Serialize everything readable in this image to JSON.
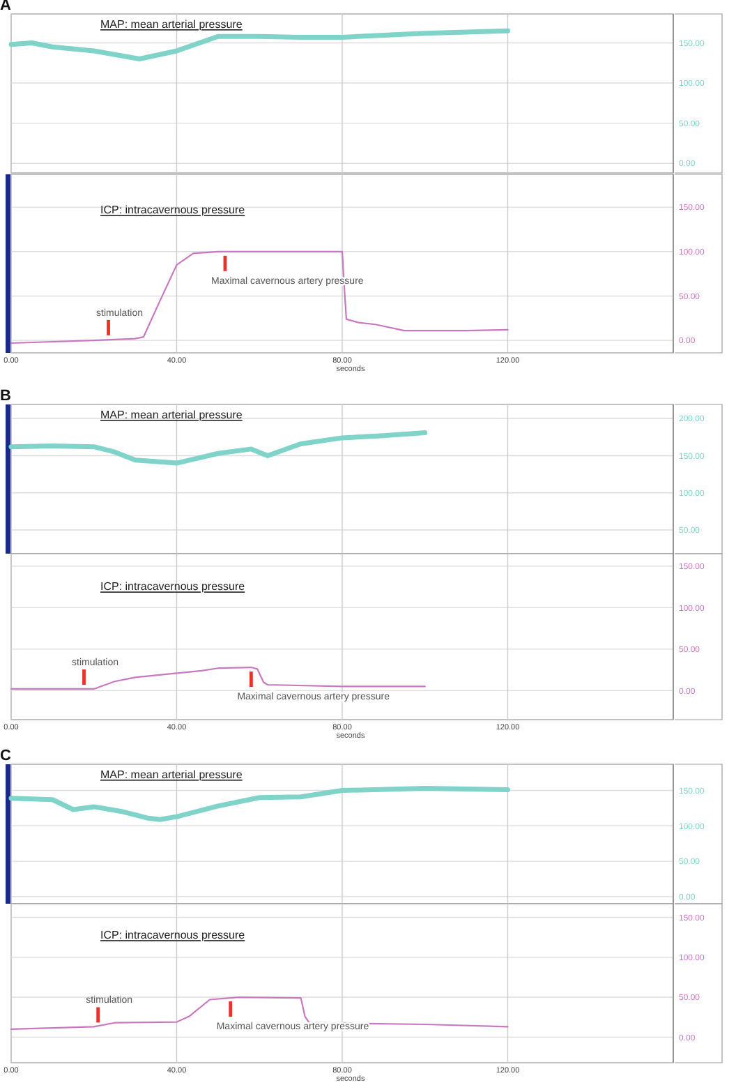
{
  "chart_data": [
    {
      "type": "line",
      "title": "MAP: mean arterial pressure",
      "annotations": [
        "A"
      ],
      "x": [
        0,
        5,
        10,
        20,
        31,
        40,
        50,
        60,
        70,
        80,
        100,
        120
      ],
      "series": [
        {
          "color": "#7fd3c8",
          "values": [
            148,
            150,
            145,
            140,
            130,
            140,
            158,
            158,
            157,
            157,
            162,
            165
          ]
        }
      ],
      "xlim": [
        0,
        160
      ],
      "xticks": [
        {
          "value": 0,
          "label": null
        },
        {
          "value": 40,
          "label": null
        },
        {
          "value": 80,
          "label": null
        },
        {
          "value": 120,
          "label": null
        }
      ],
      "ylim": [
        -12,
        186
      ],
      "yticks": [
        {
          "value": 0,
          "label": "0.00"
        },
        {
          "value": 50,
          "label": "50.00"
        },
        {
          "value": 100,
          "label": "100.00"
        },
        {
          "value": 150,
          "label": "150.00"
        }
      ],
      "grid": true,
      "tick_labels": "y"
    },
    {
      "type": "line",
      "title": "ICP: intracavernous pressure",
      "xlabel": "seconds",
      "annotations": [
        {
          "text": "stimulation",
          "x": 23.5,
          "y": 1
        },
        {
          "text": "Maximal cavernous artery  pressure",
          "x": 51.7,
          "y": 100
        }
      ],
      "x": [
        0,
        20,
        30,
        32,
        36,
        40,
        44,
        50,
        65,
        80,
        80.5,
        81,
        84,
        88,
        95,
        110,
        120
      ],
      "series": [
        {
          "color": "#c878c0",
          "values": [
            -3,
            0,
            2,
            4,
            45,
            85,
            98,
            100,
            100,
            100,
            60,
            24,
            20,
            18,
            11,
            11,
            12
          ]
        }
      ],
      "xlim": [
        0,
        160
      ],
      "xticks": [
        {
          "value": 0,
          "label": "0.00"
        },
        {
          "value": 40,
          "label": "40.00"
        },
        {
          "value": 80,
          "label": "80.00"
        },
        {
          "value": 120,
          "label": "120.00"
        }
      ],
      "ylim": [
        -14,
        187
      ],
      "yticks": [
        {
          "value": 0,
          "label": "0.00"
        },
        {
          "value": 50,
          "label": "50.00"
        },
        {
          "value": 100,
          "label": "100.00"
        },
        {
          "value": 150,
          "label": "150.00"
        }
      ],
      "grid": true
    },
    {
      "type": "line",
      "title": "MAP: mean arterial pressure",
      "annotations": [
        "B"
      ],
      "x": [
        0,
        10,
        20,
        25,
        30,
        40,
        50,
        58,
        62,
        70,
        80,
        90,
        100
      ],
      "series": [
        {
          "color": "#7fd3c8",
          "values": [
            162,
            163,
            162,
            155,
            144,
            140,
            153,
            159,
            150,
            166,
            174,
            177,
            181
          ]
        }
      ],
      "xlim": [
        0,
        160
      ],
      "xticks": [
        {
          "value": 0,
          "label": null
        },
        {
          "value": 40,
          "label": null
        },
        {
          "value": 80,
          "label": null
        },
        {
          "value": 120,
          "label": null
        }
      ],
      "ylim": [
        18,
        219
      ],
      "yticks": [
        {
          "value": 50,
          "label": "50.00"
        },
        {
          "value": 100,
          "label": "100.00"
        },
        {
          "value": 150,
          "label": "150.00"
        },
        {
          "value": 200,
          "label": "200.00"
        }
      ],
      "grid": true,
      "tick_labels": "y"
    },
    {
      "type": "line",
      "title": "ICP: intracavernous pressure",
      "xlabel": "seconds",
      "annotations": [
        {
          "text": "stimulation",
          "x": 17.6,
          "y": 2
        },
        {
          "text": "Maximal cavernous artery  pressure",
          "x": 58,
          "y": 28
        }
      ],
      "x": [
        0,
        20,
        25,
        30,
        40,
        46,
        50,
        58,
        59.5,
        61,
        62,
        80,
        100
      ],
      "series": [
        {
          "color": "#c878c0",
          "values": [
            2,
            2,
            11,
            16,
            21,
            24,
            27,
            28,
            26,
            10,
            7,
            5,
            5
          ]
        }
      ],
      "xlim": [
        0,
        160
      ],
      "xticks": [
        {
          "value": 0,
          "label": "0.00"
        },
        {
          "value": 40,
          "label": "40.00"
        },
        {
          "value": 80,
          "label": "80.00"
        },
        {
          "value": 120,
          "label": "120.00"
        }
      ],
      "ylim": [
        -35,
        165
      ],
      "yticks": [
        {
          "value": 0,
          "label": "0.00"
        },
        {
          "value": 50,
          "label": "50.00"
        },
        {
          "value": 100,
          "label": "100.00"
        },
        {
          "value": 150,
          "label": "150.00"
        }
      ],
      "grid": true
    },
    {
      "type": "line",
      "title": "MAP: mean arterial pressure",
      "annotations": [
        "C"
      ],
      "x": [
        0,
        5,
        10,
        15,
        20,
        27,
        33,
        36,
        40,
        50,
        60,
        70,
        80,
        100,
        120
      ],
      "series": [
        {
          "color": "#7fd3c8",
          "values": [
            139,
            138,
            137,
            123,
            127,
            120,
            111,
            109,
            113,
            128,
            140,
            141,
            150,
            153,
            151
          ]
        }
      ],
      "xlim": [
        0,
        160
      ],
      "xticks": [
        {
          "value": 0,
          "label": null
        },
        {
          "value": 40,
          "label": null
        },
        {
          "value": 80,
          "label": null
        },
        {
          "value": 120,
          "label": null
        }
      ],
      "ylim": [
        -10,
        187
      ],
      "yticks": [
        {
          "value": 0,
          "label": "0.00"
        },
        {
          "value": 50,
          "label": "50.00"
        },
        {
          "value": 100,
          "label": "100.00"
        },
        {
          "value": 150,
          "label": "150.00"
        }
      ],
      "grid": true,
      "tick_labels": "y"
    },
    {
      "type": "line",
      "title": "ICP: intracavernous pressure",
      "xlabel": "seconds",
      "annotations": [
        {
          "text": "stimulation",
          "x": 21,
          "y": 13
        },
        {
          "text": "Maximal cavernous artery  pressure",
          "x": 53,
          "y": 50
        }
      ],
      "x": [
        0,
        20,
        25,
        40,
        43,
        48,
        55,
        70,
        71,
        72,
        100,
        120
      ],
      "series": [
        {
          "color": "#c878c0",
          "values": [
            10,
            13,
            18,
            19,
            26,
            47,
            50,
            49,
            26,
            18,
            16,
            13
          ]
        }
      ],
      "xlim": [
        0,
        160
      ],
      "xticks": [
        {
          "value": 0,
          "label": "0.00"
        },
        {
          "value": 40,
          "label": "40.00"
        },
        {
          "value": 80,
          "label": "80.00"
        },
        {
          "value": 120,
          "label": "120.00"
        }
      ],
      "ylim": [
        -32,
        167
      ],
      "yticks": [
        {
          "value": 0,
          "label": "0.00"
        },
        {
          "value": 50,
          "label": "50.00"
        },
        {
          "value": 100,
          "label": "100.00"
        },
        {
          "value": 150,
          "label": "150.00"
        }
      ],
      "grid": true
    }
  ]
}
